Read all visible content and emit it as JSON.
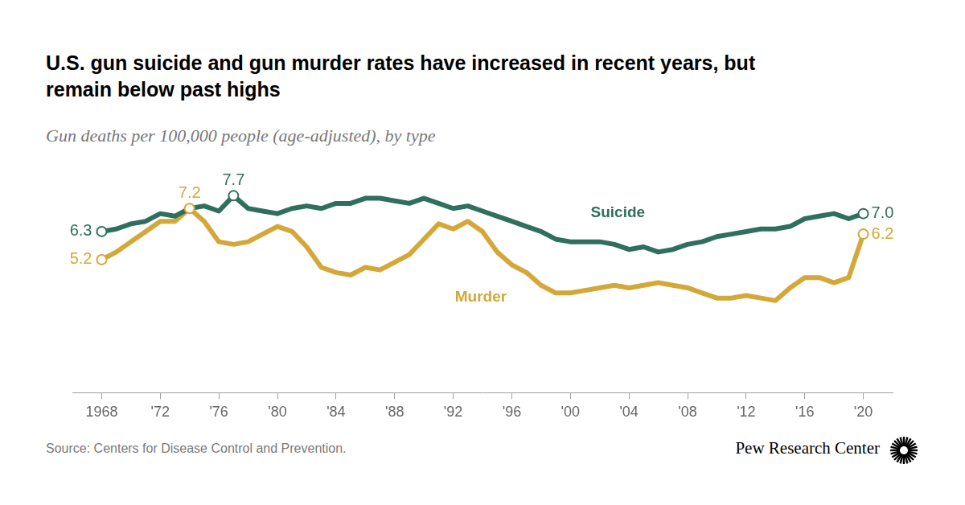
{
  "chart_data": {
    "type": "line",
    "title": "U.S. gun suicide and gun murder rates have increased in recent years, but remain below past highs",
    "subtitle": "Gun deaths per 100,000 people (age-adjusted), by type",
    "source": "Source: Centers for Disease Control and Prevention.",
    "credit": "Pew Research Center",
    "x": [
      1968,
      1969,
      1970,
      1971,
      1972,
      1973,
      1974,
      1975,
      1976,
      1977,
      1978,
      1979,
      1980,
      1981,
      1982,
      1983,
      1984,
      1985,
      1986,
      1987,
      1988,
      1989,
      1990,
      1991,
      1992,
      1993,
      1994,
      1995,
      1996,
      1997,
      1998,
      1999,
      2000,
      2001,
      2002,
      2003,
      2004,
      2005,
      2006,
      2007,
      2008,
      2009,
      2010,
      2011,
      2012,
      2013,
      2014,
      2015,
      2016,
      2017,
      2018,
      2019,
      2020
    ],
    "series": [
      {
        "name": "Suicide",
        "color": "#2f6f5e",
        "values": [
          6.3,
          6.4,
          6.6,
          6.7,
          7.0,
          6.9,
          7.2,
          7.3,
          7.1,
          7.7,
          7.2,
          7.1,
          7.0,
          7.2,
          7.3,
          7.2,
          7.4,
          7.4,
          7.6,
          7.6,
          7.5,
          7.4,
          7.6,
          7.4,
          7.2,
          7.3,
          7.1,
          6.9,
          6.7,
          6.5,
          6.3,
          6.0,
          5.9,
          5.9,
          5.9,
          5.8,
          5.6,
          5.7,
          5.5,
          5.6,
          5.8,
          5.9,
          6.1,
          6.2,
          6.3,
          6.4,
          6.4,
          6.5,
          6.8,
          6.9,
          7.0,
          6.8,
          7.0
        ]
      },
      {
        "name": "Murder",
        "color": "#d4a838",
        "values": [
          5.2,
          5.5,
          5.9,
          6.3,
          6.7,
          6.7,
          7.2,
          6.7,
          5.9,
          5.8,
          5.9,
          6.2,
          6.5,
          6.3,
          5.7,
          4.9,
          4.7,
          4.6,
          4.9,
          4.8,
          5.1,
          5.4,
          6.0,
          6.6,
          6.4,
          6.7,
          6.3,
          5.5,
          5.0,
          4.7,
          4.2,
          3.9,
          3.9,
          4.0,
          4.1,
          4.2,
          4.1,
          4.2,
          4.3,
          4.2,
          4.1,
          3.9,
          3.7,
          3.7,
          3.8,
          3.7,
          3.6,
          4.1,
          4.5,
          4.5,
          4.3,
          4.5,
          6.2
        ]
      }
    ],
    "xlim": [
      1966,
      2022
    ],
    "xticks": [
      {
        "value": 1968,
        "label": "1968"
      },
      {
        "value": 1972,
        "label": "'72"
      },
      {
        "value": 1976,
        "label": "'76"
      },
      {
        "value": 1980,
        "label": "'80"
      },
      {
        "value": 1984,
        "label": "'84"
      },
      {
        "value": 1988,
        "label": "'88"
      },
      {
        "value": 1992,
        "label": "'92"
      },
      {
        "value": 1996,
        "label": "'96"
      },
      {
        "value": 2000,
        "label": "'00"
      },
      {
        "value": 2004,
        "label": "'04"
      },
      {
        "value": 2008,
        "label": "'08"
      },
      {
        "value": 2012,
        "label": "'12"
      },
      {
        "value": 2016,
        "label": "'16"
      },
      {
        "value": 2020,
        "label": "'20"
      }
    ],
    "ylim": [
      0,
      9
    ],
    "yticks": [
      0,
      9
    ],
    "grid": false,
    "tick_labels": "x",
    "annotations": [
      {
        "series": "Suicide",
        "x": 1968,
        "y": 6.3,
        "label": "6.3"
      },
      {
        "series": "Murder",
        "x": 1968,
        "y": 5.2,
        "label": "5.2"
      },
      {
        "series": "Murder",
        "x": 1974,
        "y": 7.2,
        "label": "7.2"
      },
      {
        "series": "Suicide",
        "x": 1977,
        "y": 7.7,
        "label": "7.7"
      },
      {
        "series": "Suicide",
        "x": 2020,
        "y": 7.0,
        "label": "7.0"
      },
      {
        "series": "Murder",
        "x": 2020,
        "y": 6.2,
        "label": "6.2"
      }
    ]
  }
}
